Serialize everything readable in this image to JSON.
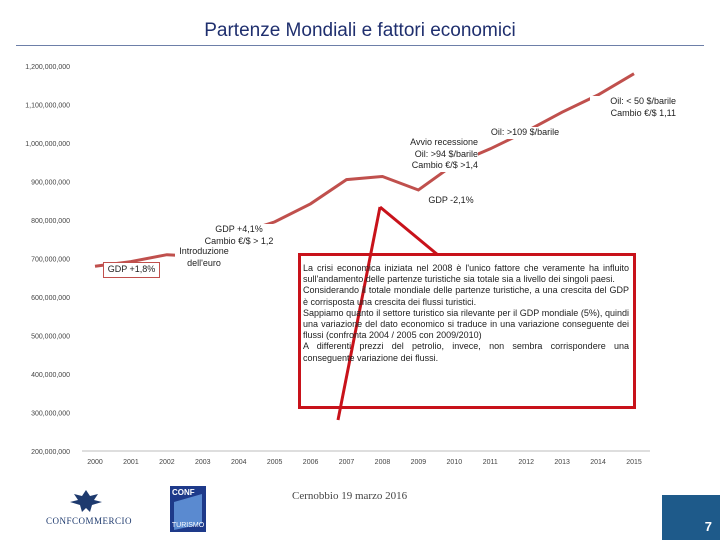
{
  "title": "Partenze Mondiali e fattori economici",
  "chart_data": {
    "type": "line",
    "x": [
      2000,
      2001,
      2002,
      2003,
      2004,
      2005,
      2006,
      2007,
      2008,
      2009,
      2010,
      2011,
      2012,
      2013,
      2014,
      2015
    ],
    "series": [
      {
        "values": [
          680000000,
          692000000,
          710000000,
          705000000,
          765000000,
          795000000,
          842000000,
          905000000,
          913000000,
          878000000,
          945000000,
          985000000,
          1030000000,
          1080000000,
          1125000000,
          1180000000
        ]
      }
    ],
    "ylim": [
      200000000,
      1200000000
    ],
    "yticks": [
      200000000,
      300000000,
      400000000,
      500000000,
      600000000,
      700000000,
      800000000,
      900000000,
      1000000000,
      1100000000,
      1200000000
    ],
    "ytick_labels": [
      "200,000,000",
      "300,000,000",
      "400,000,000",
      "500,000,000",
      "600,000,000",
      "700,000,000",
      "800,000,000",
      "900,000,000",
      "1,000,000,000",
      "1,100,000,000",
      "1,200,000,000"
    ],
    "xtick_labels": [
      "2000",
      "2001",
      "2002",
      "2003",
      "2004",
      "2005",
      "2006",
      "2007",
      "2008",
      "2009",
      "2010",
      "2011",
      "2012",
      "2013",
      "2014",
      "2015"
    ],
    "line_color": "#c0504d",
    "grid": false
  },
  "annotations": {
    "gdp_2000": "GDP +1,8%",
    "intro_euro": "Introduzione dell'euro",
    "gdp_2003_l1": "GDP +4,1%",
    "gdp_2003_l2": "Cambio €/$ > 1,2",
    "recessione_l1": "Avvio recessione",
    "recessione_l2": "Oil: >94 $/barile",
    "recessione_l3": "Cambio €/$ >1,4",
    "oil_109": "Oil: >109 $/barile",
    "gdp_2009": "GDP -2,1%",
    "oil_50_l1": "Oil: < 50 $/barile",
    "oil_50_l2": "Cambio €/$ 1,11"
  },
  "textbox": {
    "p1": "La crisi economica iniziata nel 2008 è l'unico fattore che veramente ha influito sull'andamento delle partenze turistiche sia totale sia a livello dei singoli paesi.",
    "p2": "Considerando il totale mondiale delle partenze turistiche, a una crescita del GDP è corrisposta una crescita dei flussi turistici.",
    "p3": "Sappiamo quanto il settore turistico sia rilevante per il GDP mondiale (5%), quindi una variazione del dato economico si traduce in una variazione conseguente dei flussi (confronta 2004 / 2005 con 2009/2010)",
    "p4": "A differenti prezzi del petrolio, invece, non sembra corrispondere una conseguente variazione dei flussi."
  },
  "footer": "Cernobbio 19 marzo 2016",
  "page_number": "7",
  "logos": {
    "confcommercio": "CONFCOMMERCIO",
    "conf_turismo_top": "CONF",
    "conf_turismo_bottom": "TURISMO"
  }
}
